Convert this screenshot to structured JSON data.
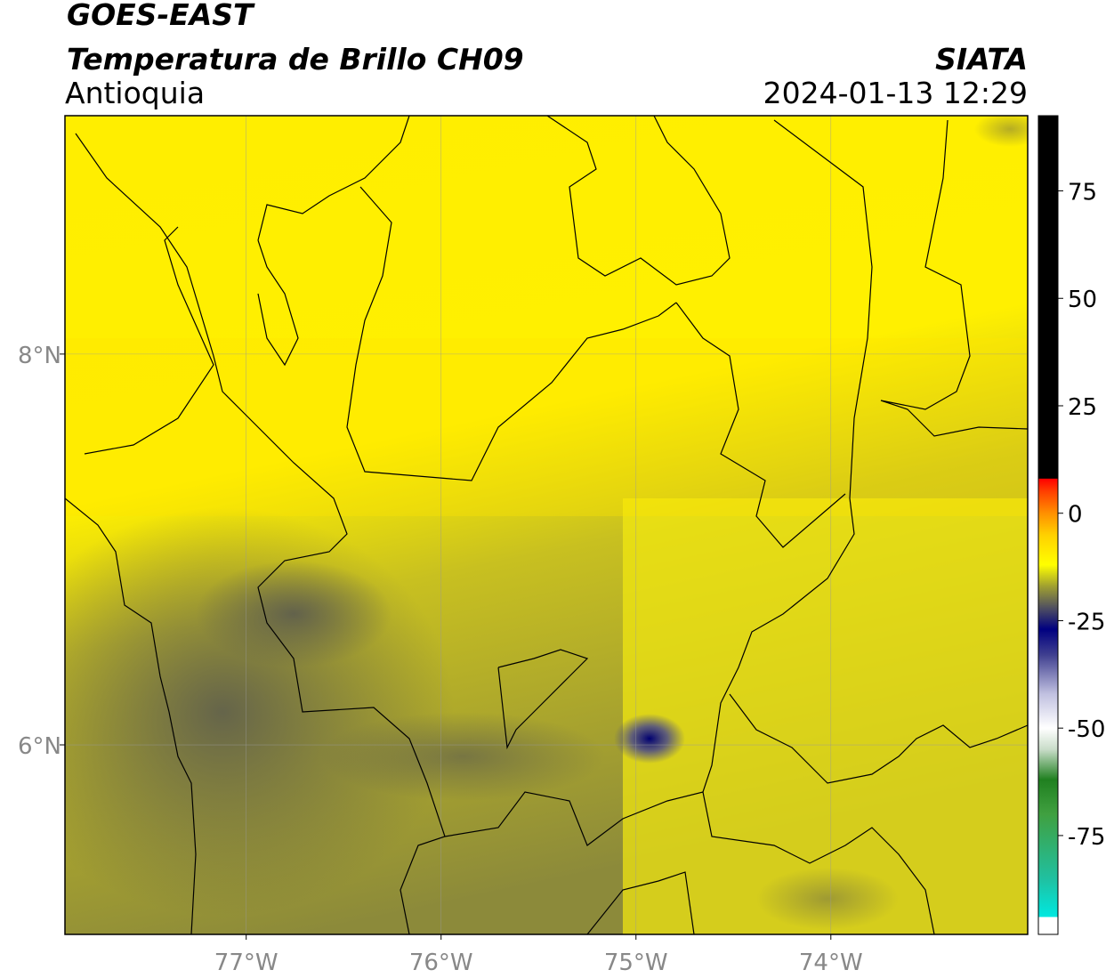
{
  "header": {
    "title": "GOES-EAST",
    "subtitle": "Temperatura de Brillo CH09",
    "region": "Antioquia",
    "source": "SIATA",
    "datetime": "2024-01-13 12:29"
  },
  "map": {
    "xlim": [
      -77.93,
      -72.99
    ],
    "ylim": [
      5.03,
      9.22
    ],
    "xticks": [
      {
        "value": -77,
        "label": "77°W"
      },
      {
        "value": -76,
        "label": "76°W"
      },
      {
        "value": -75,
        "label": "75°W"
      },
      {
        "value": -74,
        "label": "74°W"
      }
    ],
    "yticks": [
      {
        "value": 8,
        "label": "8°N"
      },
      {
        "value": 6,
        "label": "6°N"
      }
    ],
    "grid": true
  },
  "colorbar": {
    "lim": [
      -98,
      92.5
    ],
    "ticks": [
      75,
      50,
      25,
      0,
      -25,
      -50,
      -75
    ],
    "colormap": [
      {
        "value": -98,
        "color": "#ffffff"
      },
      {
        "value": -94,
        "color": "#ffffff"
      },
      {
        "value": -93.9,
        "color": "#00e8e0"
      },
      {
        "value": -85,
        "color": "#20c0a0"
      },
      {
        "value": -70,
        "color": "#40a040"
      },
      {
        "value": -62,
        "color": "#208020"
      },
      {
        "value": -55,
        "color": "#c8dcc8"
      },
      {
        "value": -50,
        "color": "#ffffff"
      },
      {
        "value": -42,
        "color": "#c0c0e0"
      },
      {
        "value": -33,
        "color": "#404090"
      },
      {
        "value": -27,
        "color": "#000080"
      },
      {
        "value": -22,
        "color": "#505060"
      },
      {
        "value": -17,
        "color": "#a0a030"
      },
      {
        "value": -12,
        "color": "#ffff00"
      },
      {
        "value": -5,
        "color": "#ffd000"
      },
      {
        "value": 0,
        "color": "#ff9000"
      },
      {
        "value": 5,
        "color": "#ff4000"
      },
      {
        "value": 8,
        "color": "#ff0000"
      },
      {
        "value": 8.1,
        "color": "#000000"
      },
      {
        "value": 92.5,
        "color": "#000000"
      }
    ]
  }
}
